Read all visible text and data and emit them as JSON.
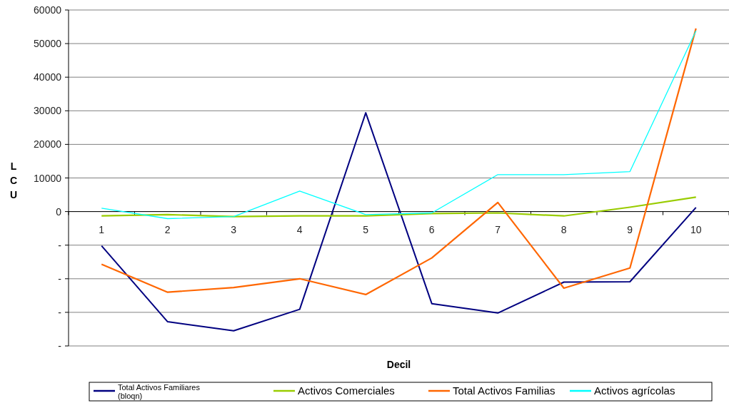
{
  "chart_data": {
    "type": "line",
    "xlabel": "Decil",
    "ylabel": "LCU",
    "categories": [
      "1",
      "2",
      "3",
      "4",
      "5",
      "6",
      "7",
      "8",
      "9",
      "10"
    ],
    "series": [
      {
        "name": "Total Activos Familiares (bloqn)",
        "color": "#000080",
        "values": [
          -10200,
          -32800,
          -35500,
          -29100,
          29400,
          -27400,
          -30200,
          -21000,
          -20900,
          1200
        ]
      },
      {
        "name": "Activos Comerciales",
        "color": "#99cc00",
        "values": [
          -1300,
          -900,
          -1500,
          -1300,
          -1300,
          -600,
          -400,
          -1300,
          1300,
          4300
        ]
      },
      {
        "name": "Total Activos Familias",
        "color": "#ff6600",
        "values": [
          -15700,
          -24000,
          -22600,
          -20000,
          -24700,
          -13800,
          2700,
          -22800,
          -16800,
          54500
        ]
      },
      {
        "name": "Activos agrícolas",
        "color": "#00ffff",
        "values": [
          1000,
          -2100,
          -1500,
          6100,
          -900,
          -400,
          11000,
          11000,
          11900,
          53800
        ]
      }
    ],
    "ylim": [
      -40000,
      60000
    ],
    "yticks": [
      {
        "value": -40000,
        "label": "-"
      },
      {
        "value": -30000,
        "label": "-"
      },
      {
        "value": -20000,
        "label": "-"
      },
      {
        "value": -10000,
        "label": "-"
      },
      0,
      10000,
      20000,
      30000,
      40000,
      50000,
      60000
    ],
    "grid": "y",
    "legend": "bottom",
    "marker": "none",
    "line_style": "solid"
  }
}
